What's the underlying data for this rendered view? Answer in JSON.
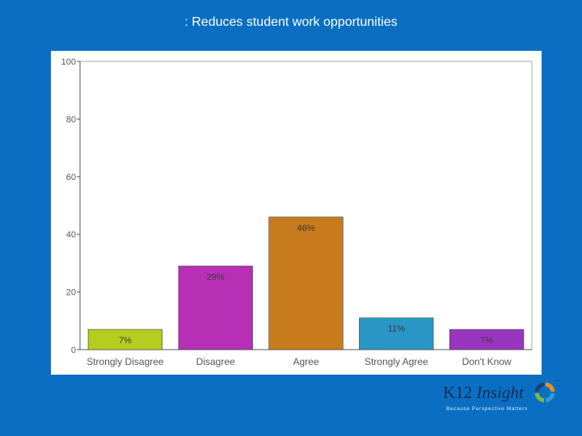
{
  "slide": {
    "title": ": Reduces student work opportunities"
  },
  "chart_data": {
    "type": "bar",
    "categories": [
      "Strongly Disagree",
      "Disagree",
      "Agree",
      "Strongly Agree",
      "Don't Know"
    ],
    "values": [
      7,
      29,
      46,
      11,
      7
    ],
    "data_labels": [
      "7%",
      "29%",
      "46%",
      "11%",
      "7%"
    ],
    "colors": [
      "#b5cd1e",
      "#b72fb5",
      "#c77b1c",
      "#2a96c6",
      "#9935bf"
    ],
    "title": "",
    "xlabel": "",
    "ylabel": "",
    "ylim": [
      0,
      100
    ],
    "yticks": [
      0,
      20,
      40,
      60,
      80,
      100
    ],
    "grid": false,
    "legend": "none"
  },
  "logo": {
    "brand_part1": "K12",
    "brand_part2": "Insight",
    "trademark": "™",
    "tagline": "Because Perspective Matters",
    "ring_colors": [
      "#f28c1e",
      "#2e9bd6",
      "#7cb842",
      "#1c3f7a"
    ]
  }
}
